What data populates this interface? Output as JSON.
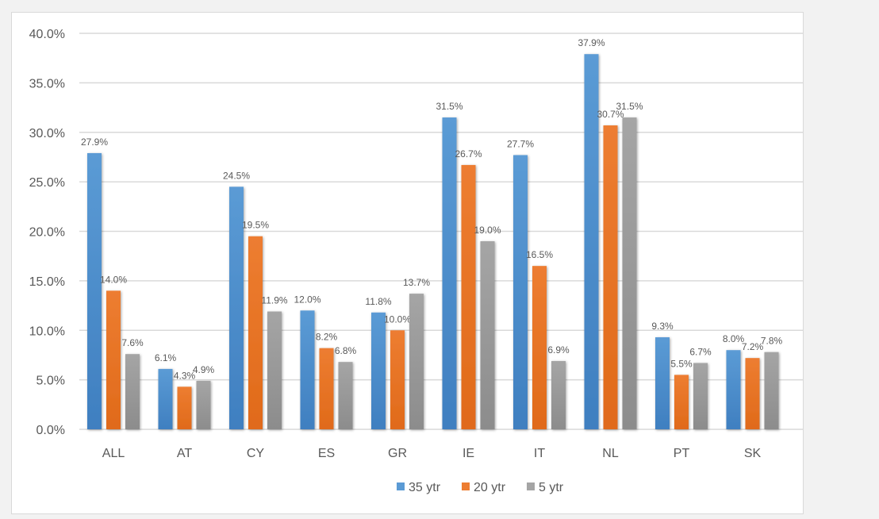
{
  "chart_data": {
    "type": "bar",
    "categories": [
      "ALL",
      "AT",
      "CY",
      "ES",
      "GR",
      "IE",
      "IT",
      "NL",
      "PT",
      "SK"
    ],
    "series": [
      {
        "name": "35 ytr",
        "color": "#5b9bd5",
        "values": [
          27.9,
          6.1,
          24.5,
          12.0,
          11.8,
          31.5,
          27.7,
          37.9,
          9.3,
          8.0
        ]
      },
      {
        "name": "20 ytr",
        "color": "#ed7d31",
        "values": [
          14.0,
          4.3,
          19.5,
          8.2,
          10.0,
          26.7,
          16.5,
          30.7,
          5.5,
          7.2
        ]
      },
      {
        "name": "5 ytr",
        "color": "#a5a5a5",
        "values": [
          7.6,
          4.9,
          11.9,
          6.8,
          13.7,
          19.0,
          6.9,
          31.5,
          6.7,
          7.8
        ]
      }
    ],
    "yticks": [
      "0.0%",
      "5.0%",
      "10.0%",
      "15.0%",
      "20.0%",
      "25.0%",
      "30.0%",
      "35.0%",
      "40.0%"
    ],
    "ylim": [
      0,
      40
    ],
    "grid": true,
    "legend": "bottom",
    "data_label_format": "0.0%"
  }
}
